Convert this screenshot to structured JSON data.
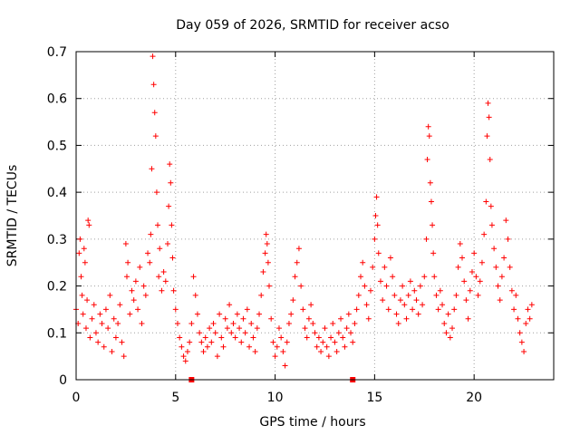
{
  "chart_data": {
    "type": "scatter",
    "title": "Day 059 of 2026, SRMTID for receiver acso",
    "xlabel": "GPS time / hours",
    "ylabel": "SRMTID / TECUs",
    "xlim": [
      0,
      24
    ],
    "ylim": [
      0,
      0.7
    ],
    "x_ticks": [
      0,
      5,
      10,
      15,
      20
    ],
    "x_tick_labels": [
      "0",
      "5",
      "10",
      "15",
      "20"
    ],
    "y_ticks": [
      0,
      0.1,
      0.2,
      0.3,
      0.4,
      0.5,
      0.6,
      0.7
    ],
    "y_tick_labels": [
      "0",
      "0.1",
      "0.2",
      "0.3",
      "0.4",
      "0.5",
      "0.6",
      "0.7"
    ],
    "grid": true,
    "marker": "+",
    "color": "#ff0000",
    "data_gaps_hours": [
      5.8,
      13.9
    ],
    "series": [
      {
        "name": "SRMTID",
        "points": [
          [
            0.0,
            0.15
          ],
          [
            0.1,
            0.12
          ],
          [
            0.15,
            0.27
          ],
          [
            0.2,
            0.3
          ],
          [
            0.25,
            0.22
          ],
          [
            0.3,
            0.18
          ],
          [
            0.35,
            0.14
          ],
          [
            0.4,
            0.28
          ],
          [
            0.45,
            0.25
          ],
          [
            0.5,
            0.11
          ],
          [
            0.55,
            0.17
          ],
          [
            0.6,
            0.34
          ],
          [
            0.65,
            0.33
          ],
          [
            0.7,
            0.09
          ],
          [
            0.8,
            0.13
          ],
          [
            0.9,
            0.16
          ],
          [
            1.0,
            0.1
          ],
          [
            1.1,
            0.08
          ],
          [
            1.2,
            0.14
          ],
          [
            1.3,
            0.12
          ],
          [
            1.4,
            0.07
          ],
          [
            1.5,
            0.15
          ],
          [
            1.6,
            0.11
          ],
          [
            1.7,
            0.18
          ],
          [
            1.8,
            0.06
          ],
          [
            1.9,
            0.13
          ],
          [
            2.0,
            0.09
          ],
          [
            2.1,
            0.12
          ],
          [
            2.2,
            0.16
          ],
          [
            2.3,
            0.08
          ],
          [
            2.4,
            0.05
          ],
          [
            2.5,
            0.29
          ],
          [
            2.55,
            0.22
          ],
          [
            2.6,
            0.25
          ],
          [
            2.7,
            0.14
          ],
          [
            2.8,
            0.19
          ],
          [
            2.9,
            0.17
          ],
          [
            3.0,
            0.21
          ],
          [
            3.1,
            0.15
          ],
          [
            3.2,
            0.24
          ],
          [
            3.3,
            0.12
          ],
          [
            3.4,
            0.2
          ],
          [
            3.5,
            0.18
          ],
          [
            3.6,
            0.27
          ],
          [
            3.7,
            0.25
          ],
          [
            3.75,
            0.31
          ],
          [
            3.8,
            0.45
          ],
          [
            3.85,
            0.69
          ],
          [
            3.9,
            0.63
          ],
          [
            3.95,
            0.57
          ],
          [
            4.0,
            0.52
          ],
          [
            4.05,
            0.4
          ],
          [
            4.1,
            0.33
          ],
          [
            4.15,
            0.22
          ],
          [
            4.2,
            0.28
          ],
          [
            4.3,
            0.19
          ],
          [
            4.4,
            0.23
          ],
          [
            4.5,
            0.21
          ],
          [
            4.6,
            0.29
          ],
          [
            4.65,
            0.37
          ],
          [
            4.7,
            0.46
          ],
          [
            4.75,
            0.42
          ],
          [
            4.8,
            0.33
          ],
          [
            4.85,
            0.26
          ],
          [
            4.9,
            0.19
          ],
          [
            5.0,
            0.15
          ],
          [
            5.1,
            0.12
          ],
          [
            5.2,
            0.09
          ],
          [
            5.3,
            0.07
          ],
          [
            5.4,
            0.05
          ],
          [
            5.5,
            0.04
          ],
          [
            5.6,
            0.06
          ],
          [
            5.7,
            0.08
          ],
          [
            5.8,
            0.12
          ],
          [
            5.9,
            0.22
          ],
          [
            6.0,
            0.18
          ],
          [
            6.1,
            0.14
          ],
          [
            6.2,
            0.1
          ],
          [
            6.3,
            0.08
          ],
          [
            6.4,
            0.06
          ],
          [
            6.5,
            0.09
          ],
          [
            6.6,
            0.07
          ],
          [
            6.7,
            0.11
          ],
          [
            6.8,
            0.08
          ],
          [
            6.9,
            0.12
          ],
          [
            7.0,
            0.1
          ],
          [
            7.1,
            0.05
          ],
          [
            7.2,
            0.14
          ],
          [
            7.3,
            0.09
          ],
          [
            7.4,
            0.07
          ],
          [
            7.5,
            0.13
          ],
          [
            7.6,
            0.11
          ],
          [
            7.7,
            0.16
          ],
          [
            7.8,
            0.1
          ],
          [
            7.9,
            0.12
          ],
          [
            8.0,
            0.09
          ],
          [
            8.1,
            0.14
          ],
          [
            8.2,
            0.11
          ],
          [
            8.3,
            0.08
          ],
          [
            8.4,
            0.13
          ],
          [
            8.5,
            0.1
          ],
          [
            8.6,
            0.15
          ],
          [
            8.7,
            0.07
          ],
          [
            8.8,
            0.12
          ],
          [
            8.9,
            0.09
          ],
          [
            9.0,
            0.06
          ],
          [
            9.1,
            0.11
          ],
          [
            9.2,
            0.14
          ],
          [
            9.3,
            0.18
          ],
          [
            9.4,
            0.23
          ],
          [
            9.5,
            0.27
          ],
          [
            9.55,
            0.31
          ],
          [
            9.6,
            0.29
          ],
          [
            9.65,
            0.25
          ],
          [
            9.7,
            0.2
          ],
          [
            9.8,
            0.13
          ],
          [
            9.9,
            0.08
          ],
          [
            10.0,
            0.05
          ],
          [
            10.1,
            0.07
          ],
          [
            10.2,
            0.11
          ],
          [
            10.3,
            0.09
          ],
          [
            10.4,
            0.06
          ],
          [
            10.5,
            0.03
          ],
          [
            10.6,
            0.08
          ],
          [
            10.7,
            0.12
          ],
          [
            10.8,
            0.14
          ],
          [
            10.9,
            0.17
          ],
          [
            11.0,
            0.22
          ],
          [
            11.1,
            0.25
          ],
          [
            11.2,
            0.28
          ],
          [
            11.3,
            0.2
          ],
          [
            11.4,
            0.15
          ],
          [
            11.5,
            0.11
          ],
          [
            11.6,
            0.09
          ],
          [
            11.7,
            0.13
          ],
          [
            11.8,
            0.16
          ],
          [
            11.9,
            0.12
          ],
          [
            12.0,
            0.1
          ],
          [
            12.1,
            0.07
          ],
          [
            12.2,
            0.09
          ],
          [
            12.3,
            0.06
          ],
          [
            12.4,
            0.08
          ],
          [
            12.5,
            0.11
          ],
          [
            12.6,
            0.07
          ],
          [
            12.7,
            0.05
          ],
          [
            12.8,
            0.09
          ],
          [
            12.9,
            0.12
          ],
          [
            13.0,
            0.08
          ],
          [
            13.1,
            0.06
          ],
          [
            13.2,
            0.1
          ],
          [
            13.3,
            0.13
          ],
          [
            13.4,
            0.09
          ],
          [
            13.5,
            0.07
          ],
          [
            13.6,
            0.11
          ],
          [
            13.7,
            0.14
          ],
          [
            13.8,
            0.1
          ],
          [
            13.9,
            0.08
          ],
          [
            14.0,
            0.12
          ],
          [
            14.1,
            0.15
          ],
          [
            14.2,
            0.18
          ],
          [
            14.3,
            0.22
          ],
          [
            14.4,
            0.25
          ],
          [
            14.5,
            0.2
          ],
          [
            14.6,
            0.16
          ],
          [
            14.7,
            0.13
          ],
          [
            14.8,
            0.19
          ],
          [
            14.9,
            0.24
          ],
          [
            15.0,
            0.3
          ],
          [
            15.05,
            0.35
          ],
          [
            15.1,
            0.39
          ],
          [
            15.15,
            0.33
          ],
          [
            15.2,
            0.27
          ],
          [
            15.3,
            0.21
          ],
          [
            15.4,
            0.17
          ],
          [
            15.5,
            0.24
          ],
          [
            15.6,
            0.2
          ],
          [
            15.7,
            0.15
          ],
          [
            15.8,
            0.26
          ],
          [
            15.9,
            0.22
          ],
          [
            16.0,
            0.18
          ],
          [
            16.1,
            0.14
          ],
          [
            16.2,
            0.12
          ],
          [
            16.3,
            0.17
          ],
          [
            16.4,
            0.2
          ],
          [
            16.5,
            0.16
          ],
          [
            16.6,
            0.13
          ],
          [
            16.7,
            0.18
          ],
          [
            16.8,
            0.21
          ],
          [
            16.9,
            0.15
          ],
          [
            17.0,
            0.19
          ],
          [
            17.1,
            0.17
          ],
          [
            17.2,
            0.14
          ],
          [
            17.3,
            0.2
          ],
          [
            17.4,
            0.16
          ],
          [
            17.5,
            0.22
          ],
          [
            17.6,
            0.3
          ],
          [
            17.65,
            0.47
          ],
          [
            17.7,
            0.54
          ],
          [
            17.75,
            0.52
          ],
          [
            17.8,
            0.42
          ],
          [
            17.85,
            0.38
          ],
          [
            17.9,
            0.33
          ],
          [
            17.95,
            0.27
          ],
          [
            18.0,
            0.22
          ],
          [
            18.1,
            0.18
          ],
          [
            18.2,
            0.15
          ],
          [
            18.3,
            0.19
          ],
          [
            18.4,
            0.16
          ],
          [
            18.5,
            0.12
          ],
          [
            18.6,
            0.1
          ],
          [
            18.7,
            0.14
          ],
          [
            18.8,
            0.09
          ],
          [
            18.9,
            0.11
          ],
          [
            19.0,
            0.15
          ],
          [
            19.1,
            0.18
          ],
          [
            19.2,
            0.24
          ],
          [
            19.3,
            0.29
          ],
          [
            19.4,
            0.26
          ],
          [
            19.5,
            0.21
          ],
          [
            19.6,
            0.17
          ],
          [
            19.7,
            0.13
          ],
          [
            19.8,
            0.19
          ],
          [
            19.9,
            0.23
          ],
          [
            20.0,
            0.27
          ],
          [
            20.1,
            0.22
          ],
          [
            20.2,
            0.18
          ],
          [
            20.3,
            0.21
          ],
          [
            20.4,
            0.25
          ],
          [
            20.5,
            0.31
          ],
          [
            20.6,
            0.38
          ],
          [
            20.65,
            0.52
          ],
          [
            20.7,
            0.59
          ],
          [
            20.75,
            0.56
          ],
          [
            20.8,
            0.47
          ],
          [
            20.85,
            0.37
          ],
          [
            20.9,
            0.33
          ],
          [
            21.0,
            0.28
          ],
          [
            21.1,
            0.24
          ],
          [
            21.2,
            0.2
          ],
          [
            21.3,
            0.17
          ],
          [
            21.4,
            0.22
          ],
          [
            21.5,
            0.26
          ],
          [
            21.6,
            0.34
          ],
          [
            21.7,
            0.3
          ],
          [
            21.8,
            0.24
          ],
          [
            21.9,
            0.19
          ],
          [
            22.0,
            0.15
          ],
          [
            22.1,
            0.18
          ],
          [
            22.2,
            0.13
          ],
          [
            22.3,
            0.1
          ],
          [
            22.4,
            0.08
          ],
          [
            22.5,
            0.06
          ],
          [
            22.6,
            0.12
          ],
          [
            22.7,
            0.15
          ],
          [
            22.8,
            0.13
          ],
          [
            22.9,
            0.16
          ]
        ]
      }
    ]
  }
}
